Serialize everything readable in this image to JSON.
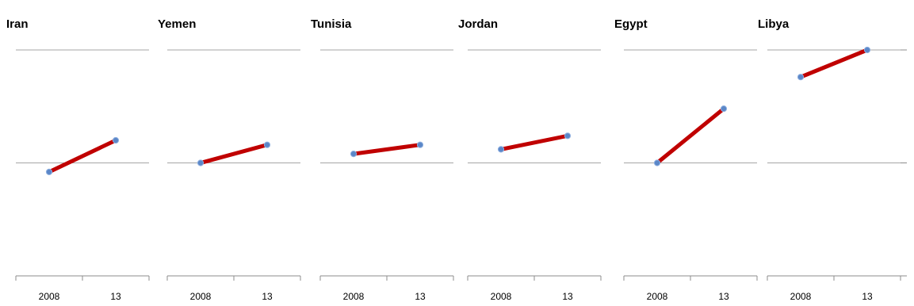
{
  "chart_data": {
    "type": "line",
    "description_layout": "small multiples",
    "categories": [
      "2008",
      "13"
    ],
    "y_ticks": [
      0,
      25,
      50
    ],
    "ylim": [
      0,
      50
    ],
    "grid": true,
    "series_color": "#c00000",
    "marker_color": "#5b87c8",
    "gridline_color": "#a6a6a6",
    "panels": [
      {
        "title": "Iran",
        "values": [
          23,
          30
        ]
      },
      {
        "title": "Yemen",
        "values": [
          25,
          29
        ]
      },
      {
        "title": "Tunisia",
        "values": [
          27,
          29
        ]
      },
      {
        "title": "Jordan",
        "values": [
          28,
          31
        ]
      },
      {
        "title": "Egypt",
        "values": [
          25,
          37
        ]
      },
      {
        "title": "Libya",
        "values": [
          44,
          50
        ]
      }
    ]
  }
}
